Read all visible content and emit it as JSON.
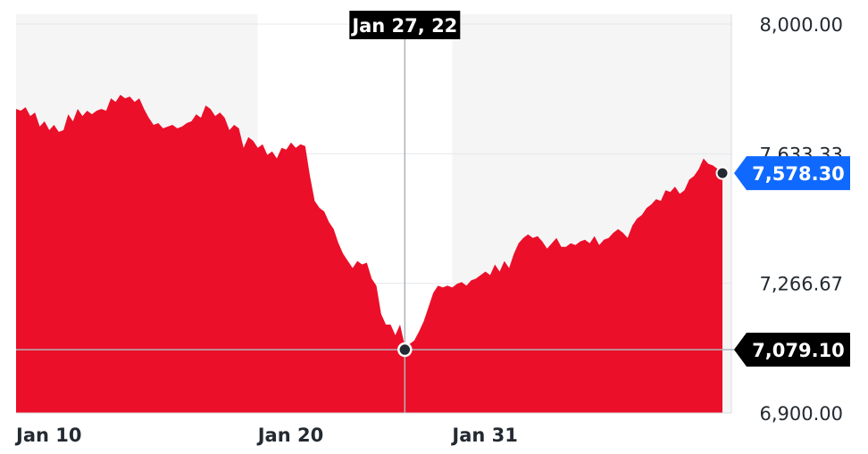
{
  "chart_data": {
    "type": "area",
    "x_labels": [
      "Jan 10",
      "Jan 20",
      "Jan 31"
    ],
    "y_ticks": [
      "8,000.00",
      "7,633.33",
      "7,266.67",
      "6,900.00"
    ],
    "ylim": [
      6900,
      8000
    ],
    "crosshair": {
      "date": "Jan 27, 22",
      "value": "7,079.10"
    },
    "last_price": "7,578.30",
    "series": [
      {
        "color": "#eb0f29",
        "values": [
          7760,
          7755,
          7765,
          7740,
          7750,
          7710,
          7725,
          7700,
          7715,
          7695,
          7700,
          7745,
          7725,
          7760,
          7740,
          7755,
          7745,
          7755,
          7760,
          7755,
          7790,
          7780,
          7800,
          7790,
          7795,
          7780,
          7790,
          7760,
          7735,
          7715,
          7720,
          7705,
          7710,
          7715,
          7705,
          7710,
          7720,
          7725,
          7745,
          7735,
          7770,
          7760,
          7740,
          7750,
          7735,
          7700,
          7715,
          7705,
          7650,
          7680,
          7670,
          7650,
          7660,
          7630,
          7640,
          7620,
          7650,
          7645,
          7665,
          7650,
          7660,
          7655,
          7570,
          7500,
          7480,
          7470,
          7440,
          7420,
          7380,
          7350,
          7330,
          7310,
          7330,
          7320,
          7325,
          7280,
          7260,
          7180,
          7150,
          7150,
          7120,
          7150,
          7090,
          7095,
          7105,
          7130,
          7160,
          7200,
          7240,
          7260,
          7255,
          7260,
          7255,
          7265,
          7270,
          7260,
          7275,
          7280,
          7290,
          7300,
          7290,
          7320,
          7300,
          7330,
          7310,
          7350,
          7380,
          7395,
          7405,
          7395,
          7400,
          7385,
          7365,
          7380,
          7395,
          7370,
          7370,
          7380,
          7375,
          7385,
          7390,
          7380,
          7400,
          7375,
          7390,
          7395,
          7410,
          7420,
          7410,
          7395,
          7430,
          7450,
          7460,
          7480,
          7490,
          7505,
          7500,
          7530,
          7525,
          7540,
          7520,
          7530,
          7560,
          7570,
          7590,
          7620,
          7605,
          7600,
          7590,
          7578.3
        ]
      }
    ]
  }
}
